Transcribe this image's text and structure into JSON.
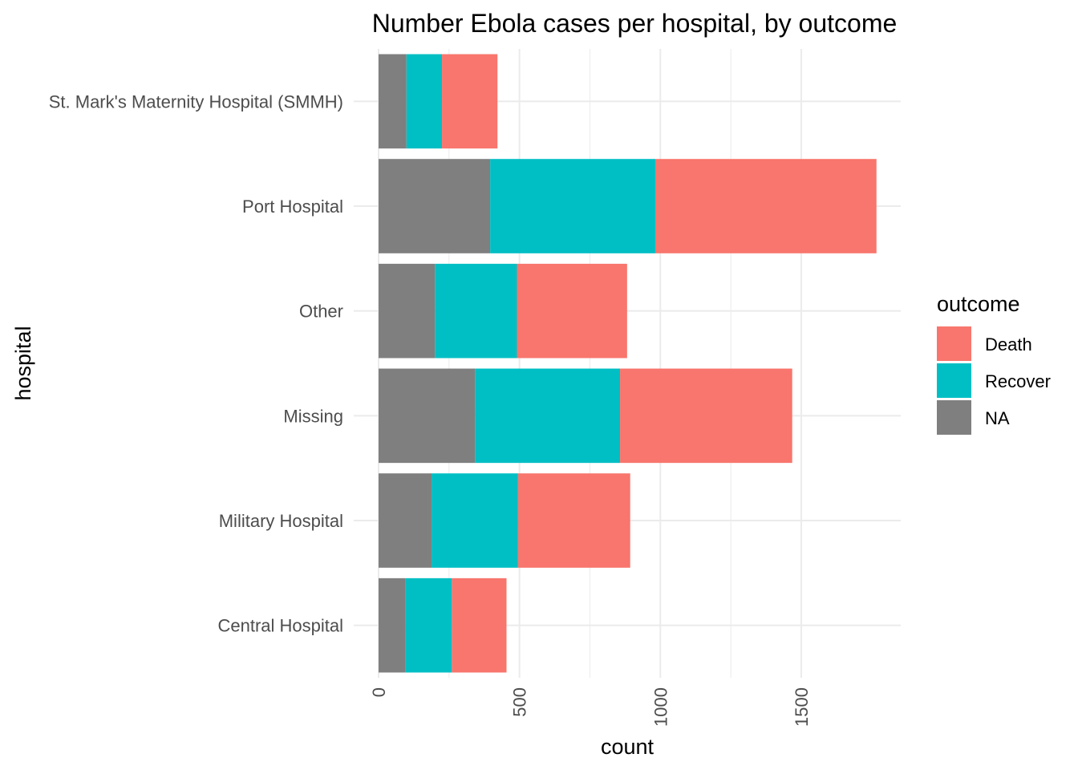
{
  "chart_data": {
    "type": "bar",
    "orientation": "horizontal",
    "stacked": true,
    "title": "Number Ebola cases per hospital, by outcome",
    "xlabel": "count",
    "ylabel": "hospital",
    "categories": [
      "Central Hospital",
      "Military Hospital",
      "Missing",
      "Other",
      "Port Hospital",
      "St. Mark's Maternity Hospital (SMMH)"
    ],
    "series": [
      {
        "name": "NA",
        "color": "#7f7f7f",
        "values": [
          95,
          188,
          342,
          200,
          396,
          99
        ]
      },
      {
        "name": "Recover",
        "color": "#00bfc4",
        "values": [
          165,
          307,
          515,
          291,
          586,
          126
        ]
      },
      {
        "name": "Death",
        "color": "#f8766d",
        "values": [
          194,
          398,
          611,
          391,
          785,
          197
        ]
      }
    ],
    "xlim": [
      0,
      1850
    ],
    "xticks": [
      0,
      500,
      1000,
      1500
    ],
    "xtick_labels": [
      "0",
      "500",
      "1000",
      "1500"
    ],
    "grid": true,
    "legend": {
      "title": "outcome",
      "position": "right",
      "entries": [
        {
          "label": "Death",
          "color": "#f8766d"
        },
        {
          "label": "Recover",
          "color": "#00bfc4"
        },
        {
          "label": "NA",
          "color": "#7f7f7f"
        }
      ]
    }
  }
}
